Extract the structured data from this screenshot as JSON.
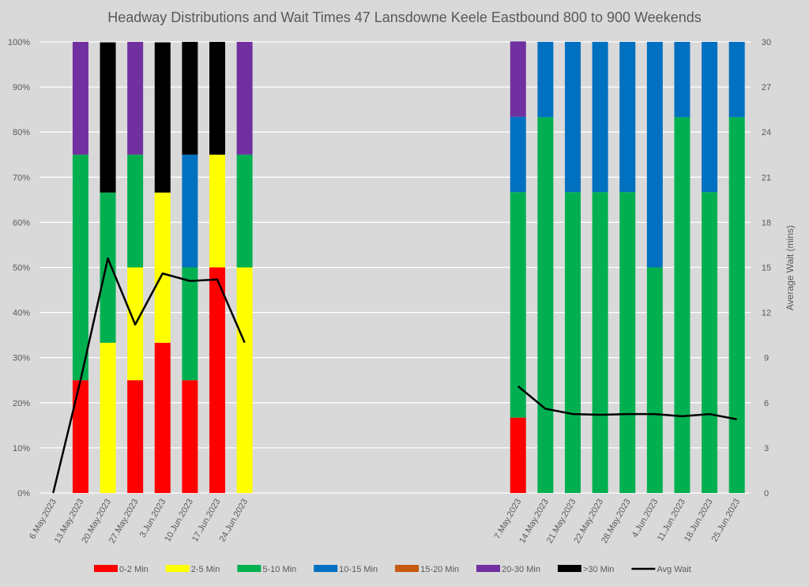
{
  "chart_data": {
    "type": "bar",
    "stacked": true,
    "title": "Headway Distributions and Wait Times 47 Lansdowne  Keele Eastbound 800 to 900 Weekends",
    "xlabel": "",
    "ylabel": "",
    "y2label": "Average Wait (mins)",
    "ylim": [
      0,
      100
    ],
    "y2lim": [
      0,
      30
    ],
    "yticks": [
      "0%",
      "10%",
      "20%",
      "30%",
      "40%",
      "50%",
      "60%",
      "70%",
      "80%",
      "90%",
      "100%"
    ],
    "y2ticks": [
      "0",
      "3",
      "6",
      "9",
      "12",
      "15",
      "18",
      "21",
      "24",
      "27",
      "30"
    ],
    "grid": true,
    "legend_position": "bottom",
    "categories": [
      "6.May.2023",
      "13.May.2023",
      "20.May.2023",
      "27.May.2023",
      "3.Jun.2023",
      "10.Jun.2023",
      "17.Jun.2023",
      "24.Jun.2023",
      "",
      "",
      "",
      "",
      "",
      "",
      "",
      "",
      "",
      "7.May.2023",
      "14.May.2023",
      "21.May.2023",
      "22.May.2023",
      "28.May.2023",
      "4.Jun.2023",
      "11.Jun.2023",
      "18.Jun.2023",
      "25.Jun.2023"
    ],
    "series": [
      {
        "name": "0-2 Min",
        "color": "#ff0000",
        "values": [
          0,
          25,
          0,
          25,
          33.3,
          25,
          50,
          0,
          null,
          null,
          null,
          null,
          null,
          null,
          null,
          null,
          null,
          16.7,
          0,
          0,
          0,
          0,
          0,
          0,
          0,
          0
        ]
      },
      {
        "name": "2-5 Min",
        "color": "#ffff00",
        "values": [
          0,
          0,
          33.3,
          25,
          33.3,
          0,
          25,
          50,
          null,
          null,
          null,
          null,
          null,
          null,
          null,
          null,
          null,
          0,
          0,
          0,
          0,
          0,
          0,
          0,
          0,
          0
        ]
      },
      {
        "name": "5-10 Min",
        "color": "#00b050",
        "values": [
          0,
          50,
          33.3,
          25,
          0,
          25,
          0,
          25,
          null,
          null,
          null,
          null,
          null,
          null,
          null,
          null,
          null,
          50,
          83.3,
          66.7,
          66.7,
          66.7,
          50,
          83.3,
          66.7,
          83.3
        ]
      },
      {
        "name": "10-15 Min",
        "color": "#0070c0",
        "values": [
          0,
          0,
          0,
          0,
          0,
          25,
          0,
          0,
          null,
          null,
          null,
          null,
          null,
          null,
          null,
          null,
          null,
          16.7,
          16.7,
          33.3,
          33.3,
          33.3,
          50,
          16.7,
          33.3,
          16.7
        ]
      },
      {
        "name": "15-20 Min",
        "color": "#c55a11",
        "values": [
          0,
          0,
          0,
          0,
          0,
          0,
          0,
          0,
          null,
          null,
          null,
          null,
          null,
          null,
          null,
          null,
          null,
          0,
          0,
          0,
          0,
          0,
          0,
          0,
          0,
          0
        ]
      },
      {
        "name": "20-30 Min",
        "color": "#7030a0",
        "values": [
          0,
          25,
          0,
          25,
          0,
          0,
          0,
          25,
          null,
          null,
          null,
          null,
          null,
          null,
          null,
          null,
          null,
          16.7,
          0,
          0,
          0,
          0,
          0,
          0,
          0,
          0
        ]
      },
      {
        "name": ">30 Min",
        "color": "#000000",
        "values": [
          0,
          0,
          33.3,
          0,
          33.3,
          25,
          25,
          0,
          null,
          null,
          null,
          null,
          null,
          null,
          null,
          null,
          null,
          0,
          0,
          0,
          0,
          0,
          0,
          0,
          0,
          0
        ]
      }
    ],
    "line_series": {
      "name": "Avg Wait",
      "color": "#000000",
      "axis": "secondary",
      "values": [
        0,
        7.5,
        15.6,
        11.2,
        14.6,
        14.1,
        14.2,
        10.0,
        null,
        null,
        null,
        null,
        null,
        null,
        null,
        null,
        null,
        7.1,
        5.6,
        5.25,
        5.2,
        5.25,
        5.25,
        5.1,
        5.25,
        4.9
      ]
    }
  }
}
